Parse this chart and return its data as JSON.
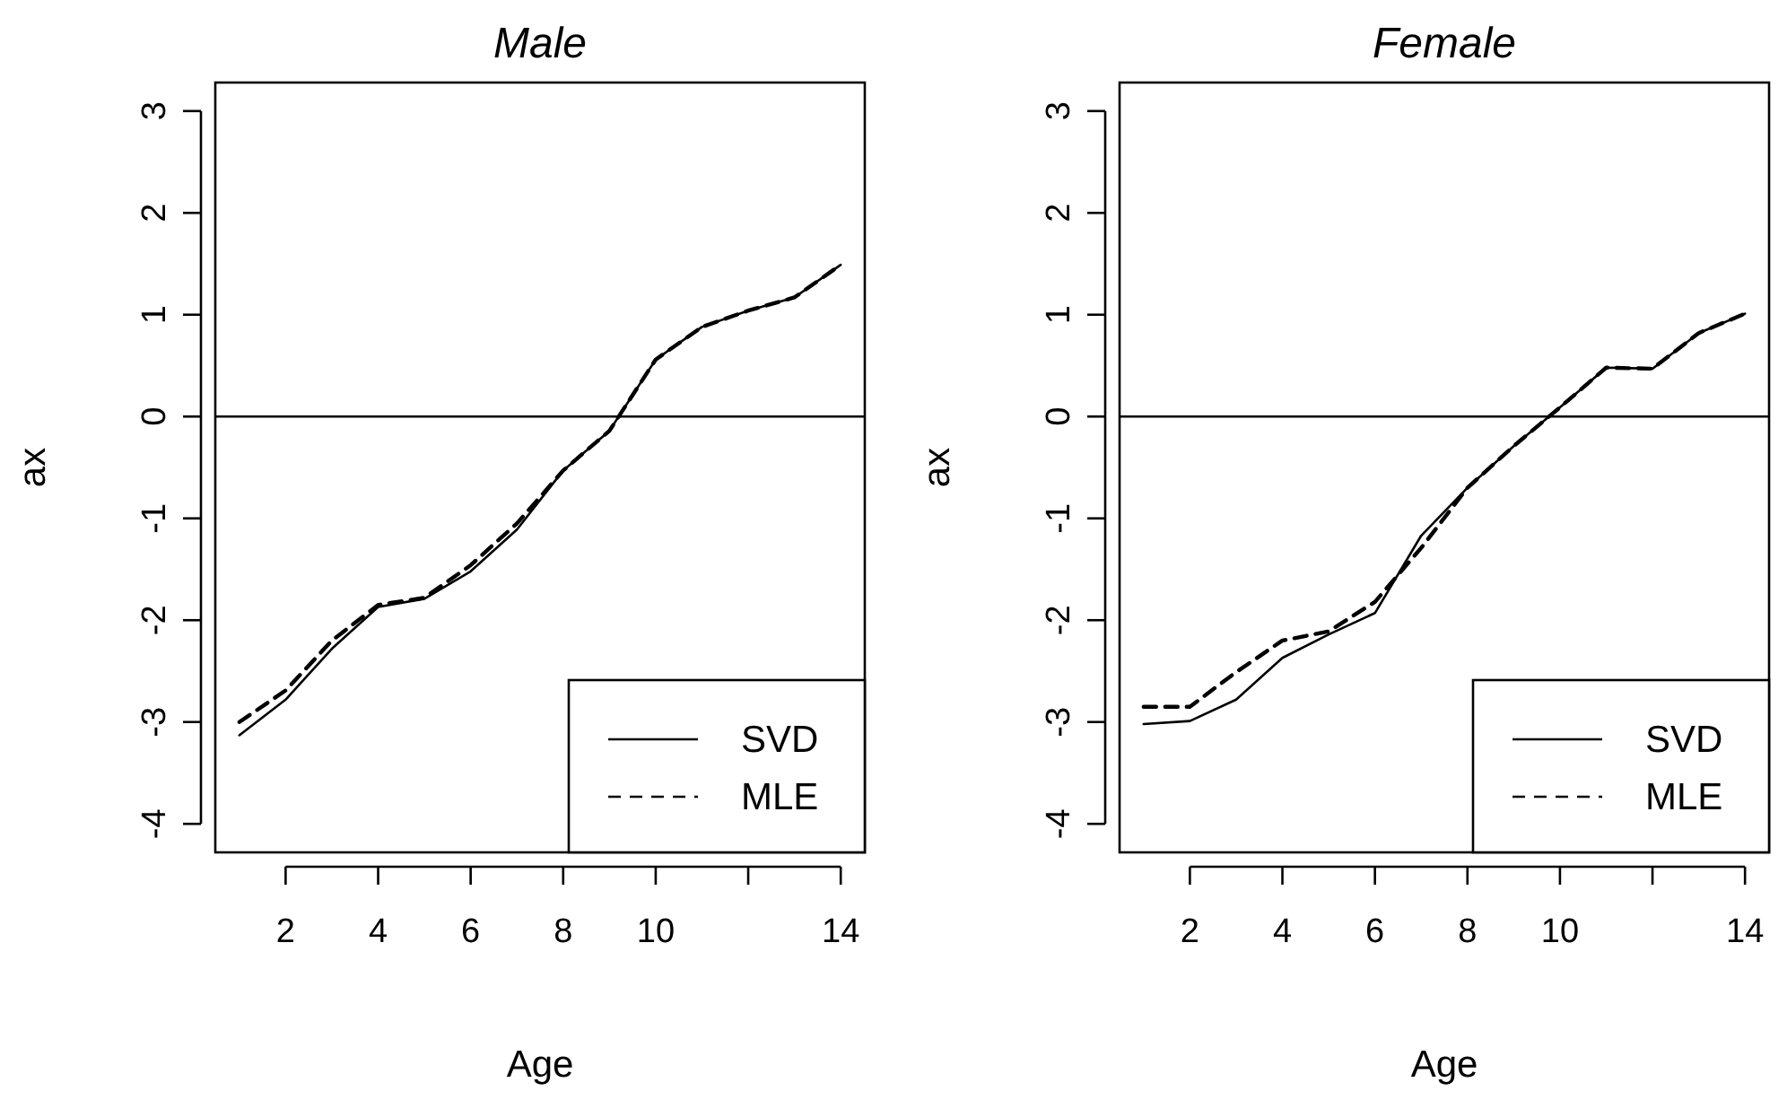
{
  "chart_data": [
    {
      "type": "line",
      "title": "Male",
      "xlabel": "Age",
      "ylabel": "ax",
      "x": [
        1,
        2,
        3,
        4,
        5,
        6,
        7,
        8,
        9,
        10,
        11,
        12,
        13,
        14
      ],
      "xlim": [
        0.48,
        14.52
      ],
      "ylim": [
        -4.28,
        3.28
      ],
      "xticks": [
        2,
        4,
        6,
        8,
        10,
        {
          "value": 12,
          "label": null
        },
        14
      ],
      "yticks": [
        -4,
        -3,
        -2,
        -1,
        0,
        1,
        2,
        3
      ],
      "legend": "bottom right",
      "ref_lines": [
        {
          "axis": "y",
          "value": 0,
          "color": "#000000"
        }
      ],
      "series": [
        {
          "name": "SVD",
          "color": "#000000",
          "line_style": "solid",
          "values": [
            -3.13,
            -2.78,
            -2.28,
            -1.87,
            -1.79,
            -1.52,
            -1.11,
            -0.53,
            -0.14,
            0.56,
            0.88,
            1.04,
            1.17,
            1.49
          ]
        },
        {
          "name": "MLE",
          "color": "#000000",
          "line_style": "dashed",
          "values": [
            -3.0,
            -2.69,
            -2.2,
            -1.85,
            -1.78,
            -1.46,
            -1.05,
            -0.53,
            -0.14,
            0.56,
            0.88,
            1.04,
            1.17,
            1.49
          ]
        }
      ]
    },
    {
      "type": "line",
      "title": "Female",
      "xlabel": "Age",
      "ylabel": "ax",
      "x": [
        1,
        2,
        3,
        4,
        5,
        6,
        7,
        8,
        9,
        10,
        11,
        12,
        13,
        14
      ],
      "xlim": [
        0.48,
        14.52
      ],
      "ylim": [
        -4.28,
        3.28
      ],
      "xticks": [
        2,
        4,
        6,
        8,
        10,
        {
          "value": 12,
          "label": null
        },
        14
      ],
      "yticks": [
        -4,
        -3,
        -2,
        -1,
        0,
        1,
        2,
        3
      ],
      "legend": "bottom right",
      "ref_lines": [
        {
          "axis": "y",
          "value": 0,
          "color": "#000000"
        }
      ],
      "series": [
        {
          "name": "SVD",
          "color": "#000000",
          "line_style": "solid",
          "values": [
            -3.02,
            -2.99,
            -2.78,
            -2.37,
            -2.14,
            -1.93,
            -1.17,
            -0.7,
            -0.29,
            0.09,
            0.48,
            0.47,
            0.82,
            1.01
          ]
        },
        {
          "name": "MLE",
          "color": "#000000",
          "line_style": "dashed",
          "values": [
            -2.85,
            -2.85,
            -2.51,
            -2.2,
            -2.11,
            -1.82,
            -1.29,
            -0.7,
            -0.29,
            0.09,
            0.48,
            0.47,
            0.82,
            1.01
          ]
        }
      ]
    }
  ]
}
